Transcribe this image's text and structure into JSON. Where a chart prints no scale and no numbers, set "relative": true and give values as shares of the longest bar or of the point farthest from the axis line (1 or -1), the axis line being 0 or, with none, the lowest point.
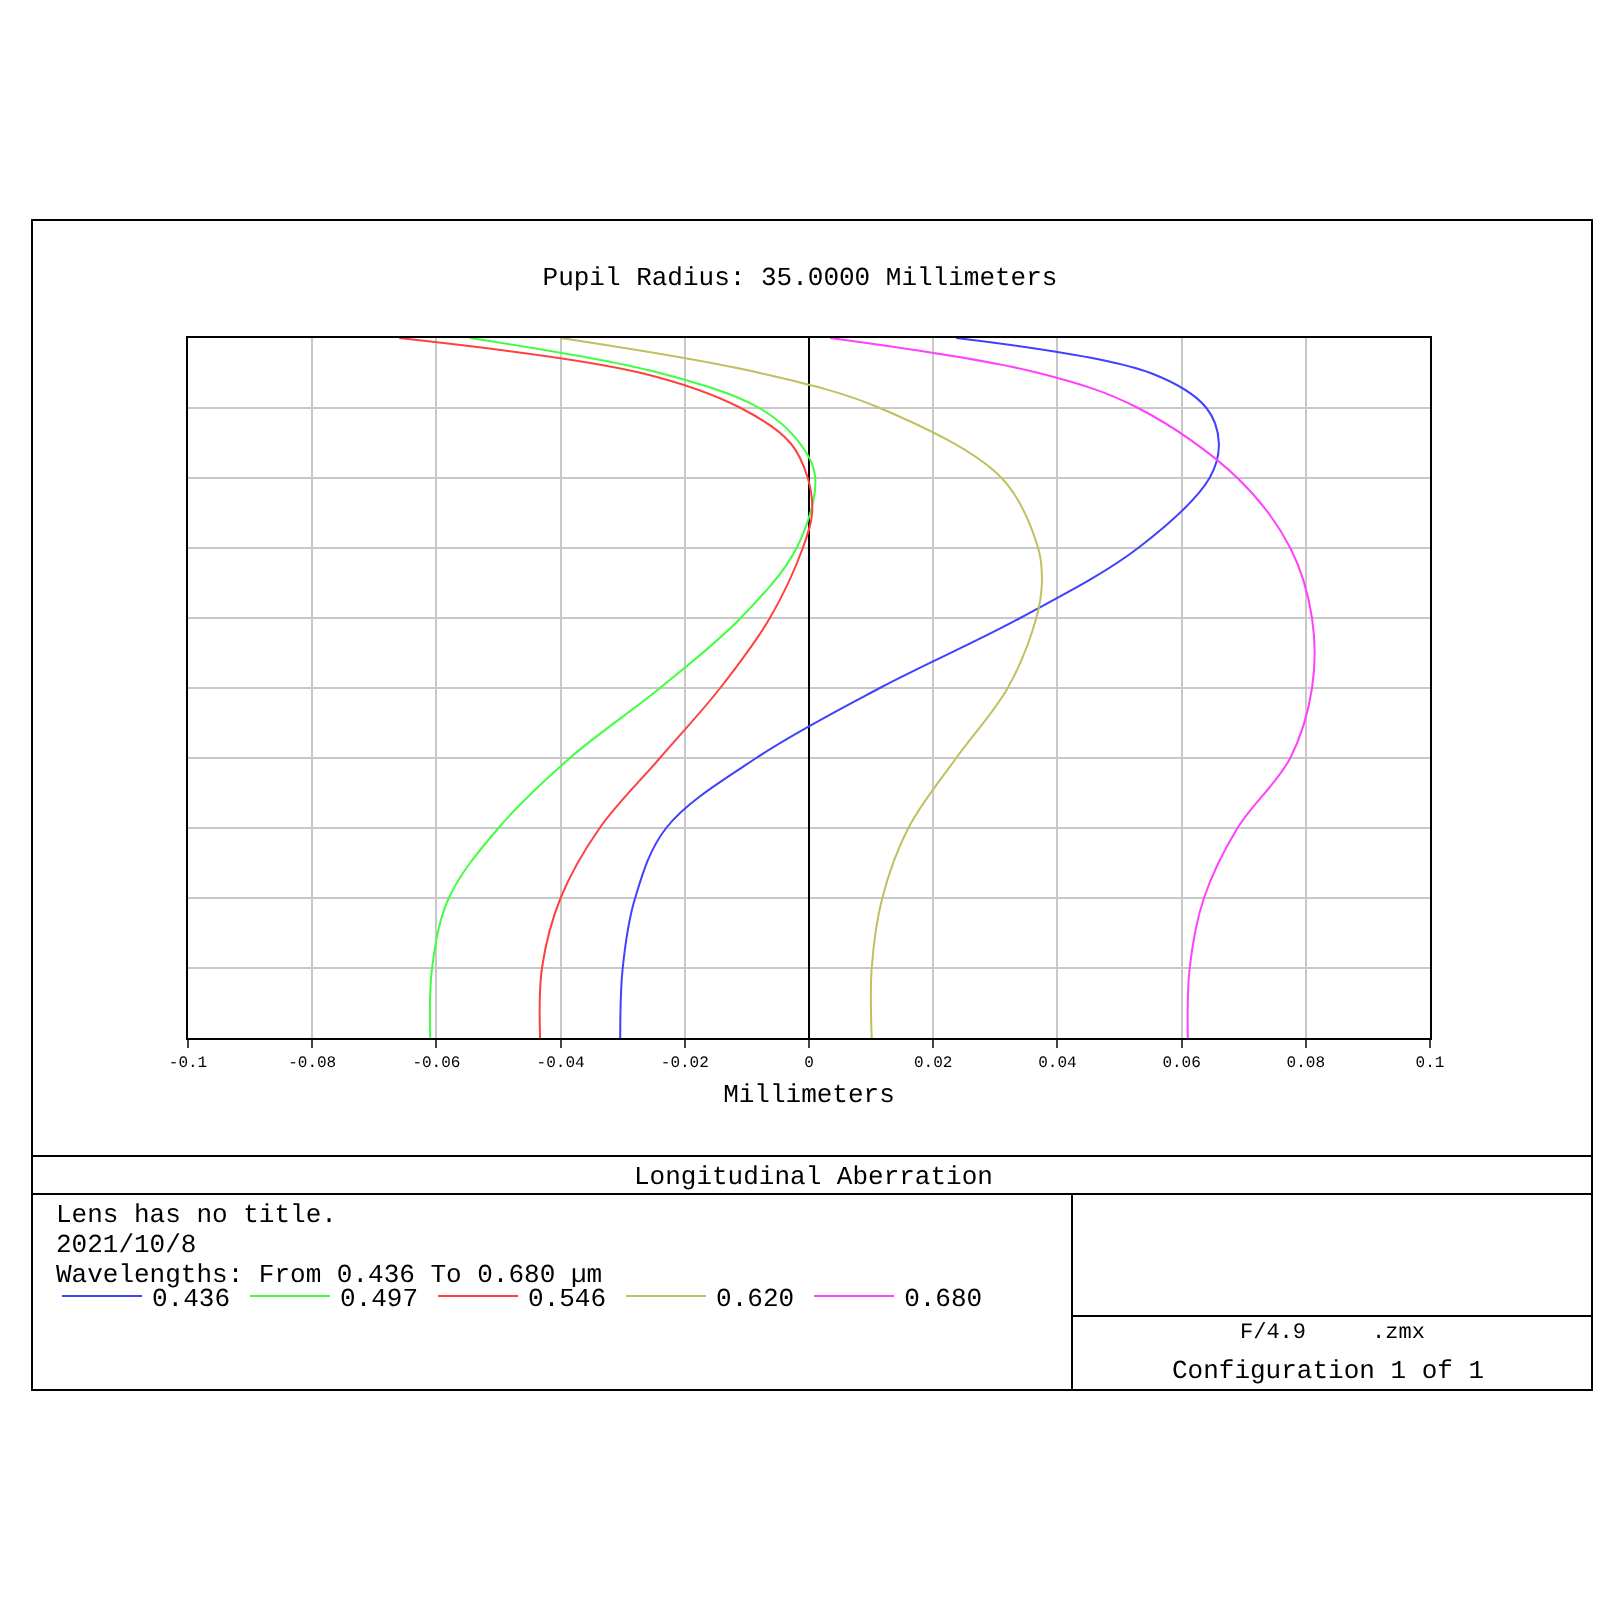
{
  "chart_data": {
    "type": "line",
    "title": "Pupil Radius: 35.0000 Millimeters",
    "xlabel": "Millimeters",
    "relative": true,
    "xlim": [
      -0.1,
      0.1
    ],
    "xticks": [
      -0.1,
      -0.08,
      -0.06,
      -0.04,
      -0.02,
      0,
      0.02,
      0.04,
      0.06,
      0.08,
      0.1
    ],
    "grid": true,
    "legend": "bottom",
    "marker": "none",
    "line_style": "solid",
    "annotations": [
      "Longitudinal Aberration",
      "Lens has no title.",
      "2021/10/8",
      "Wavelengths: From 0.436 To 0.680 µm",
      "F/4.9     .zmx",
      "Configuration 1 of 1"
    ],
    "series": [
      {
        "name": "0.436",
        "color": "#4040ff",
        "x": [
          -0.0304,
          -0.03,
          -0.028,
          -0.023,
          -0.0085,
          0.0114,
          0.034,
          0.053,
          0.0645,
          0.066,
          0.064,
          0.055,
          0.0237
        ],
        "values": [
          0,
          0.1,
          0.2,
          0.3,
          0.4,
          0.5,
          0.6,
          0.7,
          0.8,
          0.85,
          0.9,
          0.95,
          1.0
        ]
      },
      {
        "name": "0.497",
        "color": "#40ff40",
        "x": [
          -0.061,
          -0.0607,
          -0.058,
          -0.05,
          -0.0385,
          -0.024,
          -0.011,
          -0.002,
          0.001,
          -0.0015,
          -0.008,
          -0.024,
          -0.0546
        ],
        "values": [
          0,
          0.1,
          0.2,
          0.3,
          0.4,
          0.5,
          0.6,
          0.7,
          0.8,
          0.85,
          0.9,
          0.95,
          1.0
        ]
      },
      {
        "name": "0.546",
        "color": "#ff4040",
        "x": [
          -0.0433,
          -0.043,
          -0.04,
          -0.0337,
          -0.024,
          -0.0143,
          -0.0063,
          -0.001,
          0.0005,
          -0.0002,
          -0.003,
          -0.011,
          -0.027,
          -0.066
        ],
        "values": [
          0,
          0.1,
          0.2,
          0.3,
          0.4,
          0.5,
          0.6,
          0.7,
          0.75,
          0.8,
          0.85,
          0.9,
          0.95,
          1.0
        ]
      },
      {
        "name": "0.620",
        "color": "#c0c060",
        "x": [
          0.0101,
          0.0101,
          0.0118,
          0.016,
          0.0237,
          0.032,
          0.0366,
          0.0375,
          0.0369,
          0.031,
          0.0114,
          -0.0079,
          -0.04
        ],
        "values": [
          0,
          0.1,
          0.2,
          0.3,
          0.4,
          0.5,
          0.6,
          0.65,
          0.7,
          0.8,
          0.9,
          0.95,
          1.0
        ]
      },
      {
        "name": "0.680",
        "color": "#ff40ff",
        "x": [
          0.061,
          0.0613,
          0.0636,
          0.069,
          0.0775,
          0.081,
          0.081,
          0.0775,
          0.069,
          0.053,
          0.037,
          0.0034
        ],
        "values": [
          0,
          0.1,
          0.2,
          0.3,
          0.4,
          0.5,
          0.6,
          0.7,
          0.8,
          0.9,
          0.95,
          1.0
        ]
      }
    ]
  }
}
